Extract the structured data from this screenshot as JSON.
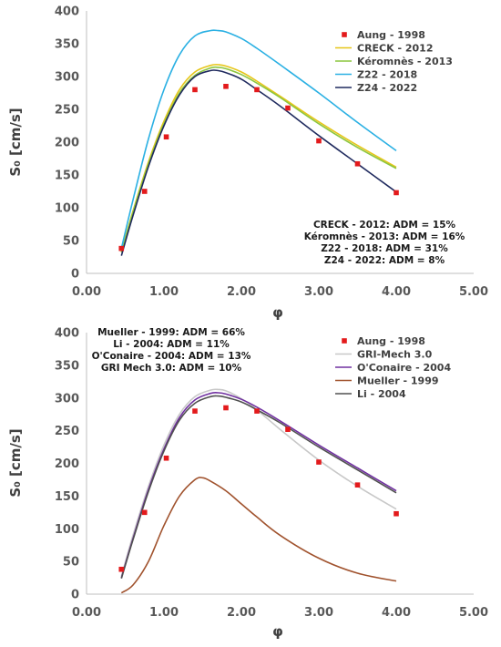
{
  "chart_data": [
    {
      "type": "scatter+line",
      "xlabel": "φ",
      "ylabel": "S₀ [cm/s]",
      "xlim": [
        0,
        5
      ],
      "ylim": [
        0,
        400
      ],
      "xticks": [
        "0.00",
        "1.00",
        "2.00",
        "3.00",
        "4.00",
        "5.00"
      ],
      "yticks": [
        "0",
        "50",
        "100",
        "150",
        "200",
        "250",
        "300",
        "350",
        "400"
      ],
      "grid": false,
      "legend_position": "top-right",
      "series": [
        {
          "name": "Aung - 1998",
          "kind": "scatter",
          "color": "#e31a1c",
          "x": [
            0.45,
            0.75,
            1.03,
            1.4,
            1.8,
            2.2,
            2.6,
            3.0,
            3.5,
            4.0
          ],
          "y": [
            38,
            125,
            208,
            280,
            285,
            280,
            252,
            202,
            167,
            123
          ]
        },
        {
          "name": "CRECK - 2012",
          "kind": "line",
          "color": "#e6c619",
          "x": [
            0.45,
            0.6,
            0.8,
            1.0,
            1.2,
            1.4,
            1.6,
            1.7,
            1.8,
            2.0,
            2.2,
            2.5,
            3.0,
            3.5,
            4.0
          ],
          "y": [
            33,
            95,
            170,
            232,
            280,
            307,
            317,
            318,
            316,
            307,
            293,
            270,
            231,
            195,
            162
          ]
        },
        {
          "name": "Kéromnès - 2013",
          "kind": "line",
          "color": "#8cc63f",
          "x": [
            0.45,
            0.6,
            0.8,
            1.0,
            1.2,
            1.4,
            1.6,
            1.7,
            1.8,
            2.0,
            2.2,
            2.5,
            3.0,
            3.5,
            4.0
          ],
          "y": [
            32,
            93,
            167,
            228,
            275,
            302,
            313,
            314,
            312,
            303,
            290,
            268,
            228,
            192,
            160
          ]
        },
        {
          "name": "Z22 - 2018",
          "kind": "line",
          "color": "#2ab0e3",
          "x": [
            0.45,
            0.6,
            0.8,
            1.0,
            1.2,
            1.4,
            1.6,
            1.7,
            1.8,
            2.0,
            2.2,
            2.5,
            3.0,
            3.5,
            4.0
          ],
          "y": [
            38,
            112,
            205,
            280,
            333,
            362,
            370,
            370,
            368,
            358,
            343,
            318,
            275,
            230,
            187
          ]
        },
        {
          "name": "Z24 - 2022",
          "kind": "line",
          "color": "#1f2a5e",
          "x": [
            0.45,
            0.6,
            0.8,
            1.0,
            1.2,
            1.4,
            1.6,
            1.7,
            1.8,
            2.0,
            2.2,
            2.5,
            3.0,
            3.5,
            4.0
          ],
          "y": [
            27,
            88,
            163,
            225,
            272,
            300,
            309,
            309,
            306,
            296,
            280,
            255,
            210,
            167,
            124
          ]
        }
      ],
      "annotations": [
        "CRECK - 2012: ADM = 15%",
        "Kéromnès - 2013: ADM = 16%",
        "Z22 - 2018: ADM = 31%",
        "Z24 - 2022: ADM = 8%"
      ]
    },
    {
      "type": "scatter+line",
      "xlabel": "φ",
      "ylabel": "S₀ [cm/s]",
      "xlim": [
        0,
        5
      ],
      "ylim": [
        0,
        400
      ],
      "xticks": [
        "0.00",
        "1.00",
        "2.00",
        "3.00",
        "4.00",
        "5.00"
      ],
      "yticks": [
        "0",
        "50",
        "100",
        "150",
        "200",
        "250",
        "300",
        "350",
        "400"
      ],
      "grid": false,
      "legend_position": "top-right",
      "series": [
        {
          "name": "Aung - 1998",
          "kind": "scatter",
          "color": "#e31a1c",
          "x": [
            0.45,
            0.75,
            1.03,
            1.4,
            1.8,
            2.2,
            2.6,
            3.0,
            3.5,
            4.0
          ],
          "y": [
            38,
            125,
            208,
            280,
            285,
            280,
            252,
            202,
            167,
            123
          ]
        },
        {
          "name": "GRI-Mech 3.0",
          "kind": "line",
          "color": "#c8c8c8",
          "x": [
            0.45,
            0.6,
            0.8,
            1.0,
            1.2,
            1.4,
            1.6,
            1.7,
            1.8,
            2.0,
            2.2,
            2.5,
            3.0,
            3.5,
            4.0
          ],
          "y": [
            27,
            90,
            165,
            228,
            275,
            302,
            312,
            313,
            311,
            299,
            282,
            252,
            205,
            165,
            130
          ]
        },
        {
          "name": "O'Conaire - 2004",
          "kind": "line",
          "color": "#7030a0",
          "x": [
            0.45,
            0.6,
            0.8,
            1.0,
            1.2,
            1.4,
            1.6,
            1.7,
            1.8,
            2.0,
            2.2,
            2.5,
            3.0,
            3.5,
            4.0
          ],
          "y": [
            25,
            85,
            160,
            222,
            270,
            297,
            307,
            308,
            306,
            298,
            286,
            265,
            228,
            193,
            158
          ]
        },
        {
          "name": "Mueller - 1999",
          "kind": "line",
          "color": "#a0522d",
          "x": [
            0.45,
            0.6,
            0.8,
            1.0,
            1.2,
            1.4,
            1.5,
            1.6,
            1.8,
            2.0,
            2.2,
            2.5,
            3.0,
            3.5,
            4.0
          ],
          "y": [
            2,
            14,
            50,
            105,
            150,
            175,
            178,
            173,
            158,
            138,
            118,
            90,
            55,
            32,
            20
          ]
        },
        {
          "name": "Li - 2004",
          "kind": "line",
          "color": "#505050",
          "x": [
            0.45,
            0.6,
            0.8,
            1.0,
            1.2,
            1.4,
            1.6,
            1.7,
            1.8,
            2.0,
            2.2,
            2.5,
            3.0,
            3.5,
            4.0
          ],
          "y": [
            24,
            83,
            157,
            219,
            266,
            292,
            302,
            303,
            301,
            294,
            282,
            262,
            225,
            190,
            155
          ]
        }
      ],
      "annotations": [
        "Mueller - 1999: ADM = 66%",
        "Li - 2004: ADM = 11%",
        "O'Conaire - 2004: ADM = 13%",
        "GRI Mech 3.0: ADM = 10%"
      ]
    }
  ]
}
